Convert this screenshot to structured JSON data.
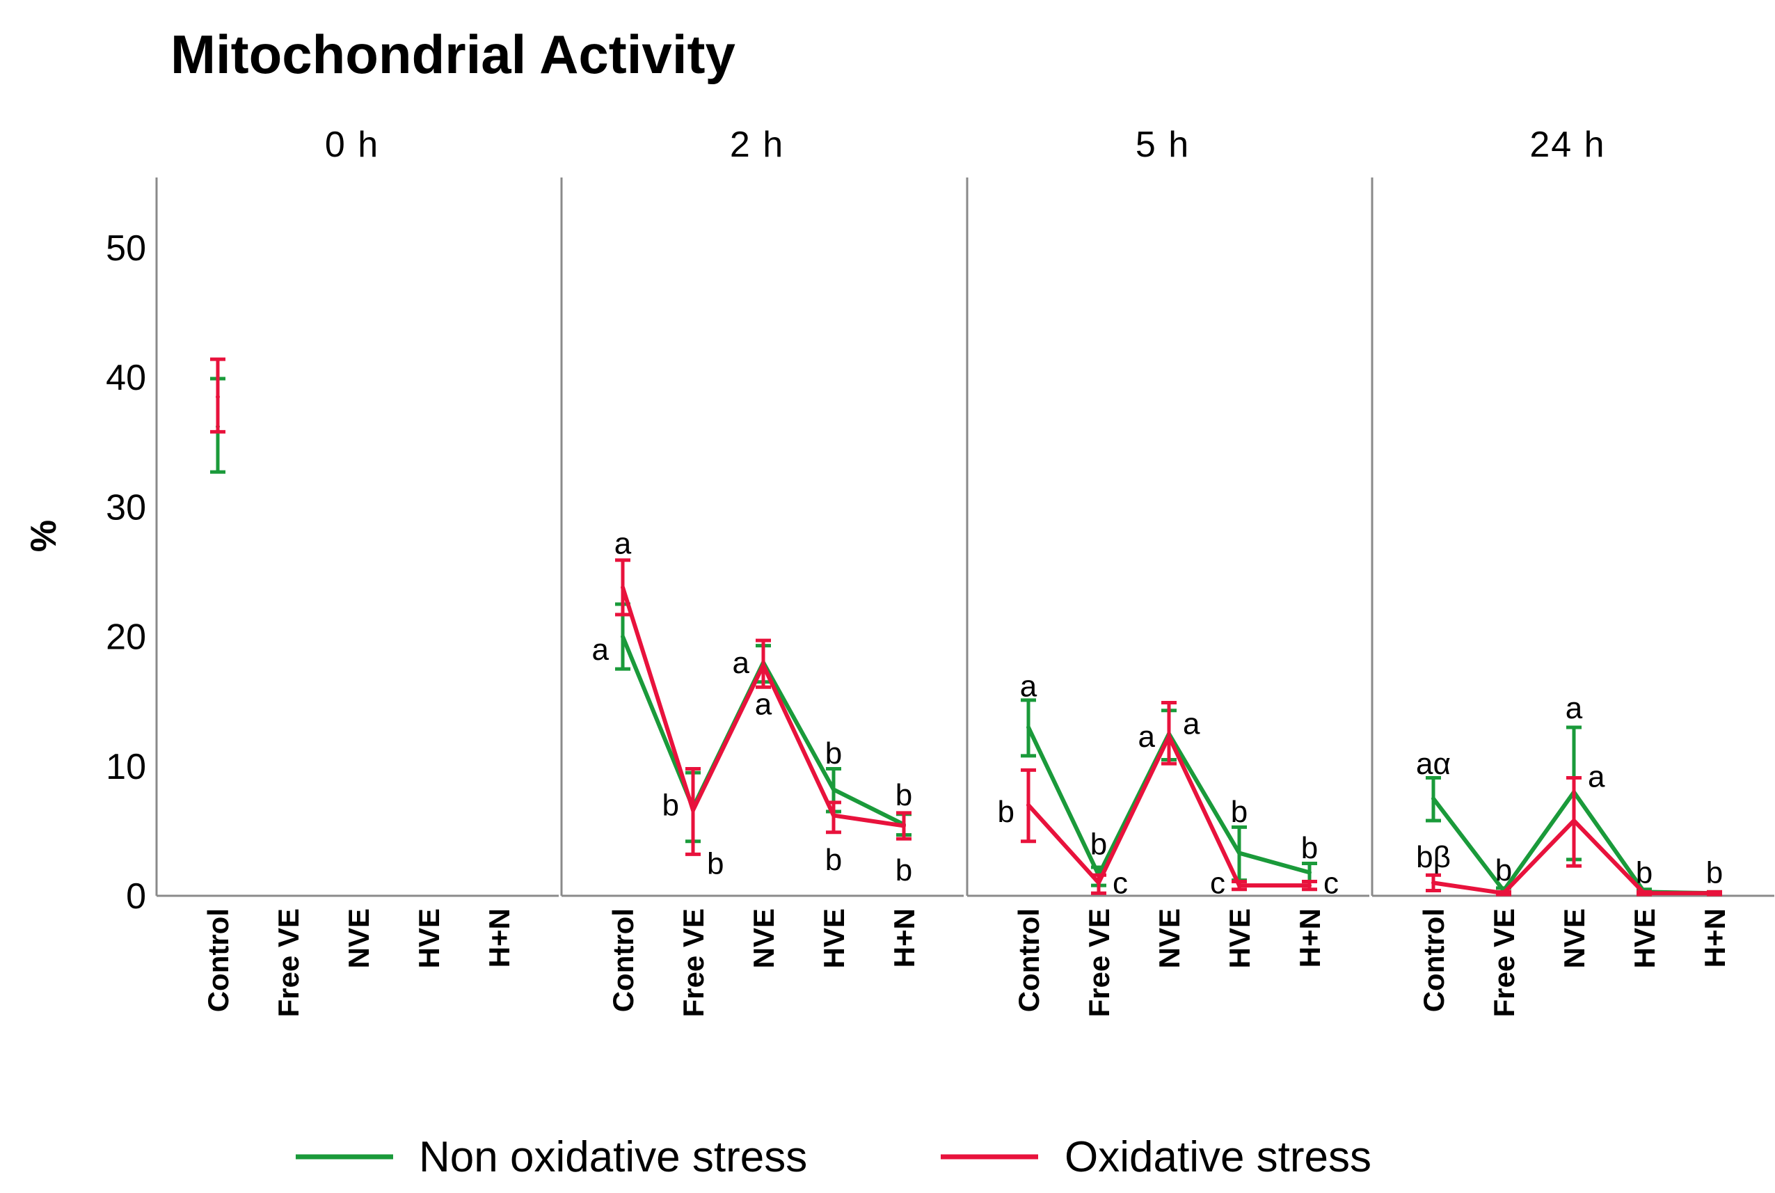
{
  "chart_data": {
    "type": "line",
    "title": "Mitochondrial Activity",
    "ylabel": "%",
    "ylim": [
      0,
      55
    ],
    "yticks": [
      0,
      10,
      20,
      30,
      40,
      50
    ],
    "categories": [
      "Control",
      "Free VE",
      "NVE",
      "HVE",
      "H+N"
    ],
    "colors": {
      "Non oxidative stress": "#1a9a3a",
      "Oxidative stress": "#e8123c"
    },
    "legend": {
      "position": "bottom",
      "entries": [
        "Non oxidative stress",
        "Oxidative stress"
      ]
    },
    "panels": [
      {
        "title": "0 h",
        "series": [
          {
            "name": "Non oxidative stress",
            "values": [
              36.2,
              null,
              null,
              null,
              null
            ],
            "err_low": [
              32.7,
              null,
              null,
              null,
              null
            ],
            "err_high": [
              39.9,
              null,
              null,
              null,
              null
            ]
          },
          {
            "name": "Oxidative stress",
            "values": [
              38.5,
              null,
              null,
              null,
              null
            ],
            "err_low": [
              35.8,
              null,
              null,
              null,
              null
            ],
            "err_high": [
              41.4,
              null,
              null,
              null,
              null
            ]
          }
        ],
        "annotations": []
      },
      {
        "title": "2 h",
        "series": [
          {
            "name": "Non oxidative stress",
            "values": [
              20.0,
              6.8,
              18.0,
              8.2,
              5.5
            ],
            "err_low": [
              17.5,
              4.2,
              16.5,
              6.5,
              4.7
            ],
            "err_high": [
              22.5,
              9.5,
              19.3,
              9.8,
              6.3
            ]
          },
          {
            "name": "Oxidative stress",
            "values": [
              23.8,
              6.6,
              17.8,
              6.2,
              5.4
            ],
            "err_low": [
              21.7,
              3.2,
              16.1,
              4.9,
              4.4
            ],
            "err_high": [
              25.9,
              9.8,
              19.7,
              7.2,
              6.4
            ]
          }
        ],
        "annotations": [
          {
            "cat": 0,
            "value": 27.2,
            "text": "a",
            "side": "center"
          },
          {
            "cat": 0,
            "value": 19.0,
            "text": "a",
            "side": "left"
          },
          {
            "cat": 1,
            "value": 7.0,
            "text": "b",
            "side": "left"
          },
          {
            "cat": 1,
            "value": 2.5,
            "text": "b",
            "side": "right"
          },
          {
            "cat": 2,
            "value": 18.0,
            "text": "a",
            "side": "left"
          },
          {
            "cat": 2,
            "value": 14.8,
            "text": "a",
            "side": "center"
          },
          {
            "cat": 3,
            "value": 11.0,
            "text": "b",
            "side": "center"
          },
          {
            "cat": 3,
            "value": 2.8,
            "text": "b",
            "side": "center"
          },
          {
            "cat": 4,
            "value": 7.8,
            "text": "b",
            "side": "center"
          },
          {
            "cat": 4,
            "value": 2.0,
            "text": "b",
            "side": "center"
          }
        ]
      },
      {
        "title": "5 h",
        "series": [
          {
            "name": "Non oxidative stress",
            "values": [
              13.0,
              1.6,
              12.5,
              3.3,
              1.8
            ],
            "err_low": [
              10.8,
              0.8,
              10.5,
              1.2,
              1.1
            ],
            "err_high": [
              15.1,
              2.2,
              14.3,
              5.3,
              2.5
            ]
          },
          {
            "name": "Oxidative stress",
            "values": [
              7.0,
              1.0,
              12.3,
              0.8,
              0.8
            ],
            "err_low": [
              4.2,
              0.2,
              10.2,
              0.5,
              0.5
            ],
            "err_high": [
              9.7,
              1.6,
              14.9,
              1.1,
              1.1
            ]
          }
        ],
        "annotations": [
          {
            "cat": 0,
            "value": 16.2,
            "text": "a",
            "side": "center"
          },
          {
            "cat": 0,
            "value": 6.5,
            "text": "b",
            "side": "left"
          },
          {
            "cat": 1,
            "value": 4.0,
            "text": "b",
            "side": "center"
          },
          {
            "cat": 1,
            "value": 1.0,
            "text": "c",
            "side": "right"
          },
          {
            "cat": 2,
            "value": 12.3,
            "text": "a",
            "side": "left"
          },
          {
            "cat": 2,
            "value": 13.3,
            "text": "a",
            "side": "right"
          },
          {
            "cat": 3,
            "value": 6.5,
            "text": "b",
            "side": "center"
          },
          {
            "cat": 3,
            "value": 1.0,
            "text": "c",
            "side": "left"
          },
          {
            "cat": 4,
            "value": 3.7,
            "text": "b",
            "side": "center"
          },
          {
            "cat": 4,
            "value": 1.0,
            "text": "c",
            "side": "right"
          }
        ]
      },
      {
        "title": "24 h",
        "series": [
          {
            "name": "Non oxidative stress",
            "values": [
              7.5,
              0.4,
              8.0,
              0.3,
              0.2
            ],
            "err_low": [
              5.8,
              0.2,
              2.8,
              0.1,
              0.1
            ],
            "err_high": [
              9.1,
              0.6,
              13.0,
              0.5,
              0.3
            ]
          },
          {
            "name": "Oxidative stress",
            "values": [
              1.0,
              0.2,
              5.8,
              0.2,
              0.2
            ],
            "err_low": [
              0.4,
              0.1,
              2.3,
              0.1,
              0.1
            ],
            "err_high": [
              1.6,
              0.3,
              9.1,
              0.3,
              0.3
            ]
          }
        ],
        "annotations": [
          {
            "cat": 0,
            "value": 10.2,
            "text": "aα",
            "side": "center"
          },
          {
            "cat": 0,
            "value": 3.0,
            "text": "bβ",
            "side": "center"
          },
          {
            "cat": 1,
            "value": 2.0,
            "text": "b",
            "side": "center"
          },
          {
            "cat": 2,
            "value": 14.5,
            "text": "a",
            "side": "center"
          },
          {
            "cat": 2,
            "value": 9.2,
            "text": "a",
            "side": "right"
          },
          {
            "cat": 3,
            "value": 1.8,
            "text": "b",
            "side": "center"
          },
          {
            "cat": 4,
            "value": 1.8,
            "text": "b",
            "side": "center"
          }
        ]
      }
    ]
  }
}
